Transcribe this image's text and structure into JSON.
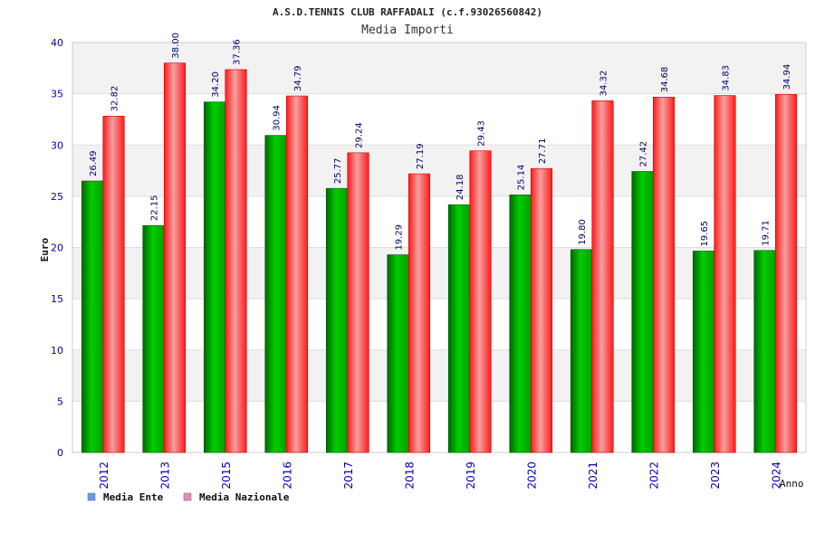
{
  "chart_data": {
    "type": "bar",
    "title": "A.S.D.TENNIS CLUB RAFFADALI (c.f.93026560842)",
    "subtitle": "Media Importi",
    "ylabel": "Euro",
    "xlabel": "Anno",
    "ylim": [
      0,
      40
    ],
    "yticks": [
      0,
      5,
      10,
      15,
      20,
      25,
      30,
      35,
      40
    ],
    "grid": true,
    "legend_position": "bottom-left",
    "categories": [
      "2012",
      "2013",
      "2015",
      "2016",
      "2017",
      "2018",
      "2019",
      "2020",
      "2021",
      "2022",
      "2023",
      "2024"
    ],
    "series": [
      {
        "name": "Media Ente",
        "color": "#00aa00",
        "legend_color": "#6699ee",
        "values": [
          26.49,
          22.15,
          34.2,
          30.94,
          25.77,
          19.29,
          24.18,
          25.14,
          19.8,
          27.42,
          19.65,
          19.71
        ],
        "labels": [
          "26.49",
          "22.15",
          "34.20",
          "30.94",
          "25.77",
          "19.29",
          "24.18",
          "25.14",
          "19.80",
          "27.42",
          "19.65",
          "19.71"
        ]
      },
      {
        "name": "Media Nazionale",
        "color": "#ff1111",
        "legend_color": "#ee88bb",
        "values": [
          32.82,
          38.0,
          37.36,
          34.79,
          29.24,
          27.19,
          29.43,
          27.71,
          34.32,
          34.68,
          34.83,
          34.94
        ],
        "labels": [
          "32.82",
          "38.00",
          "37.36",
          "34.79",
          "29.24",
          "27.19",
          "29.43",
          "27.71",
          "34.32",
          "34.68",
          "34.83",
          "34.94"
        ]
      }
    ]
  }
}
